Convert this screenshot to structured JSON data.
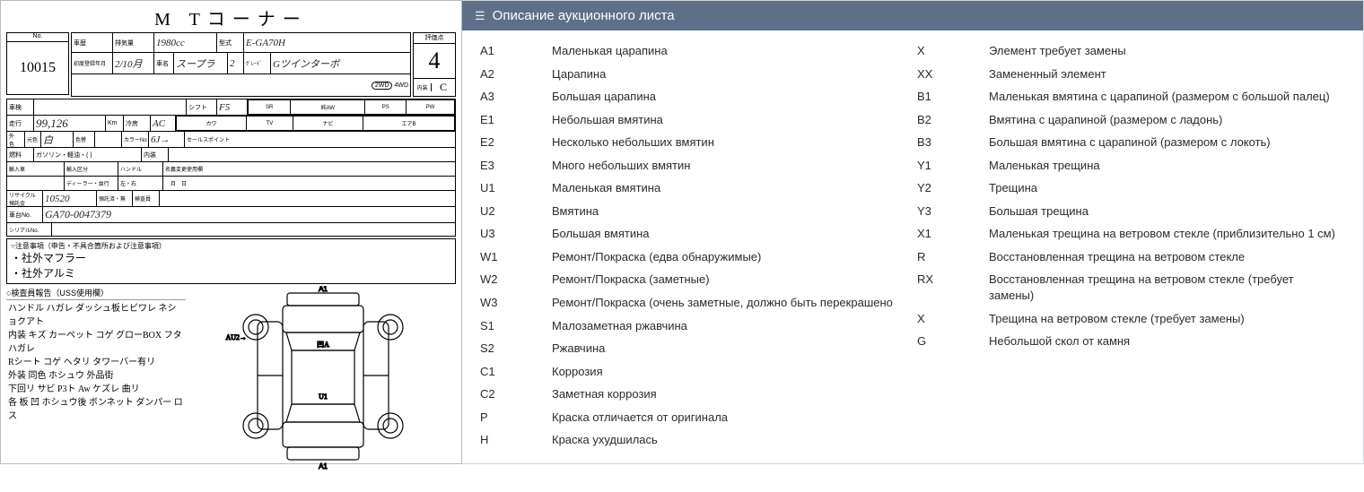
{
  "panel": {
    "header_title": "Описание аукционного листа",
    "header_bg": "#5e7088",
    "header_icon": "☰"
  },
  "sheet": {
    "title": "M Tコーナー",
    "lot_number": "10015",
    "displacement": "1980cc",
    "model_code": "E-GA70H",
    "registration": "2/10月",
    "car_name": "スープラ",
    "doors": "2",
    "grade_name": "Gツインターボ",
    "odometer": "99,126",
    "odo_unit": "Km",
    "shift": "F5",
    "ac": "AC",
    "ext_color": "白",
    "color_no": "6J→",
    "fuel": "ガソリン・軽油・(  )",
    "recycle": "10520",
    "chassis": "GA70-0047379",
    "auction_grade": "4",
    "interior_grade": "C",
    "drive_2wd": "2WD",
    "drive_4wd": "4WD",
    "equip_labels": [
      "SR",
      "純AW",
      "PS",
      "PW",
      "カワ",
      "TV",
      "ナビ",
      "エアB"
    ],
    "notes_title": "○注意事項（申告・不具合箇所および注意事項）",
    "notes_lines": [
      "・社外マフラー",
      "・社外アルミ"
    ],
    "inspection_title": "○検査員報告（USS使用欄）",
    "inspection_lines": [
      "ハンドル ハガレ   ダッシュ板ヒビワレ ネショクアト",
      "内装 キズ   カーペット コゲ   グローBOX フタ ハガレ",
      "Rシート コゲ ヘタリ   タワーバー有リ",
      "外装 同色 ホシュウ   外品街",
      "下回リ サビ  P3ト   Aw ケズレ 曲リ",
      "各 板 凹 ホシュウ後   ボンネット ダンパー ロス"
    ],
    "sales_point_label": "セールスポイント",
    "diagram_labels": {
      "front": "A1",
      "rear": "A1",
      "left_door": "AU2→",
      "roof": "凹A",
      "floor": "U1"
    }
  },
  "legend": {
    "left": [
      {
        "code": "A1",
        "desc": "Маленькая царапина"
      },
      {
        "code": "A2",
        "desc": "Царапина"
      },
      {
        "code": "A3",
        "desc": "Большая царапина"
      },
      {
        "code": "E1",
        "desc": "Небольшая вмятина"
      },
      {
        "code": "E2",
        "desc": "Несколько небольших вмятин"
      },
      {
        "code": "E3",
        "desc": "Много небольших вмятин"
      },
      {
        "code": "U1",
        "desc": "Маленькая вмятина"
      },
      {
        "code": "U2",
        "desc": "Вмятина"
      },
      {
        "code": "U3",
        "desc": "Большая вмятина"
      },
      {
        "code": "W1",
        "desc": "Ремонт/Покраска (едва обнаружимые)"
      },
      {
        "code": "W2",
        "desc": "Ремонт/Покраска (заметные)"
      },
      {
        "code": "W3",
        "desc": "Ремонт/Покраска (очень заметные, должно быть перекрашено"
      },
      {
        "code": "S1",
        "desc": "Малозаметная ржавчина"
      },
      {
        "code": "S2",
        "desc": "Ржавчина"
      },
      {
        "code": "C1",
        "desc": "Коррозия"
      },
      {
        "code": "C2",
        "desc": "Заметная коррозия"
      },
      {
        "code": "P",
        "desc": "Краска отличается от оригинала"
      },
      {
        "code": "H",
        "desc": "Краска ухудшилась"
      }
    ],
    "right": [
      {
        "code": "X",
        "desc": "Элемент требует замены"
      },
      {
        "code": "XX",
        "desc": "Замененный элемент"
      },
      {
        "code": "B1",
        "desc": "Маленькая вмятина с царапиной (размером с большой палец)"
      },
      {
        "code": "B2",
        "desc": "Вмятина с царапиной (размером с ладонь)"
      },
      {
        "code": "B3",
        "desc": "Большая вмятина с царапиной (размером с локоть)"
      },
      {
        "code": "Y1",
        "desc": "Маленькая трещина"
      },
      {
        "code": "Y2",
        "desc": "Трещина"
      },
      {
        "code": "Y3",
        "desc": "Большая трещина"
      },
      {
        "code": "X1",
        "desc": "Маленькая трещина на ветровом стекле (приблизительно 1 см)"
      },
      {
        "code": "R",
        "desc": "Восстановленная трещина на ветровом стекле"
      },
      {
        "code": "RX",
        "desc": "Восстановленная трещина на ветровом стекле (требует замены)"
      },
      {
        "code": "X",
        "desc": "Трещина на ветровом стекле (требует замены)"
      },
      {
        "code": "G",
        "desc": "Небольшой скол от камня"
      }
    ]
  },
  "colors": {
    "panel_header": "#5e7088",
    "text": "#2b2b2b",
    "border": "#d0d5dd"
  }
}
